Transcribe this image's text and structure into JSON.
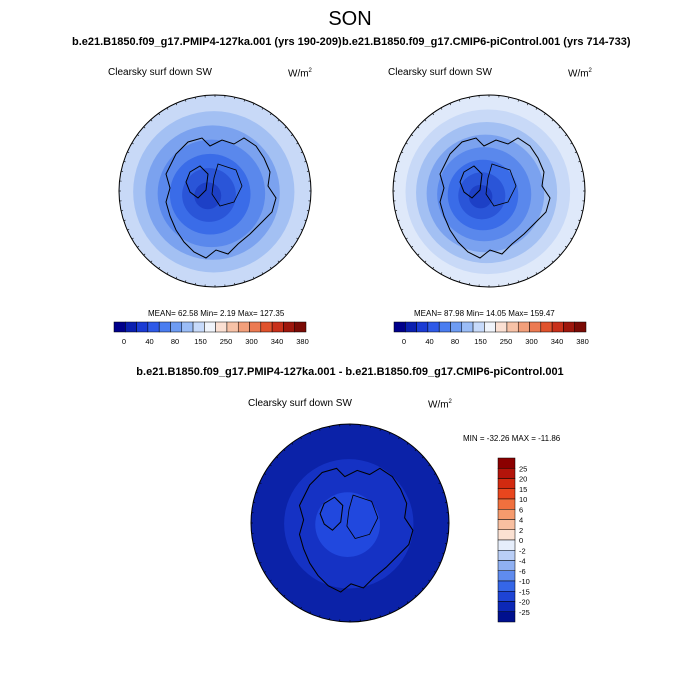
{
  "title": "SON",
  "panels": [
    {
      "case": "b.e21.B1850.f09_g17.PMIP4-127ka.001 (yrs 190-209)",
      "variable": "Clearsky surf down SW",
      "units_base": "W/m",
      "units_exp": "2",
      "stats": "MEAN=  62.58  Min=   2.19  Max= 127.35",
      "rings": [
        "#c8d9f7",
        "#a3c0f3",
        "#7ba2ef",
        "#5a88ec",
        "#3a6ce8",
        "#2a55d8",
        "#1d40c6"
      ]
    },
    {
      "case": "b.e21.B1850.f09_g17.CMIP6-piControl.001 (yrs 714-733)",
      "variable": "Clearsky surf down SW",
      "units_base": "W/m",
      "units_exp": "2",
      "stats": "MEAN=  87.98  Min=  14.05  Max= 159.47",
      "rings": [
        "#dfe9fa",
        "#c8d9f7",
        "#a3c0f3",
        "#7ba2ef",
        "#5a88ec",
        "#3a6ce8",
        "#2a55d8",
        "#1d40c6"
      ]
    }
  ],
  "colorbar": {
    "ticks": [
      "0",
      "40",
      "80",
      "150",
      "250",
      "300",
      "340",
      "380"
    ],
    "colors": [
      "#00008b",
      "#0a1fb0",
      "#1a3bd4",
      "#2f5ae8",
      "#4a7df0",
      "#6e9cf3",
      "#9bbdf7",
      "#c7dafa",
      "#f0f4fb",
      "#fbe0d3",
      "#f7c2a7",
      "#f29f7b",
      "#ec7a52",
      "#e0522c",
      "#c8301a",
      "#9e160c",
      "#7a0a05"
    ]
  },
  "difference": {
    "title": "b.e21.B1850.f09_g17.PMIP4-127ka.001 - b.e21.B1850.f09_g17.CMIP6-piControl.001",
    "variable": "Clearsky surf down SW",
    "units_base": "W/m",
    "units_exp": "2",
    "stats": "MIN = -32.26 MAX = -11.86",
    "rings": [
      "#0b22a8",
      "#1532c4",
      "#2148de"
    ],
    "colorbar_labels": [
      "25",
      "20",
      "15",
      "10",
      "6",
      "4",
      "2",
      "0",
      "-2",
      "-4",
      "-6",
      "-10",
      "-15",
      "-20",
      "-25"
    ],
    "colorbar_colors": [
      "#8b0000",
      "#b3140a",
      "#d22a10",
      "#e8461e",
      "#f0703e",
      "#f59a6d",
      "#f8bfa0",
      "#fbe1d2",
      "#e6eefb",
      "#b9cef6",
      "#8fb0f2",
      "#5f8bee",
      "#3566e7",
      "#1e44d4",
      "#0c28b6",
      "#00108e"
    ]
  }
}
